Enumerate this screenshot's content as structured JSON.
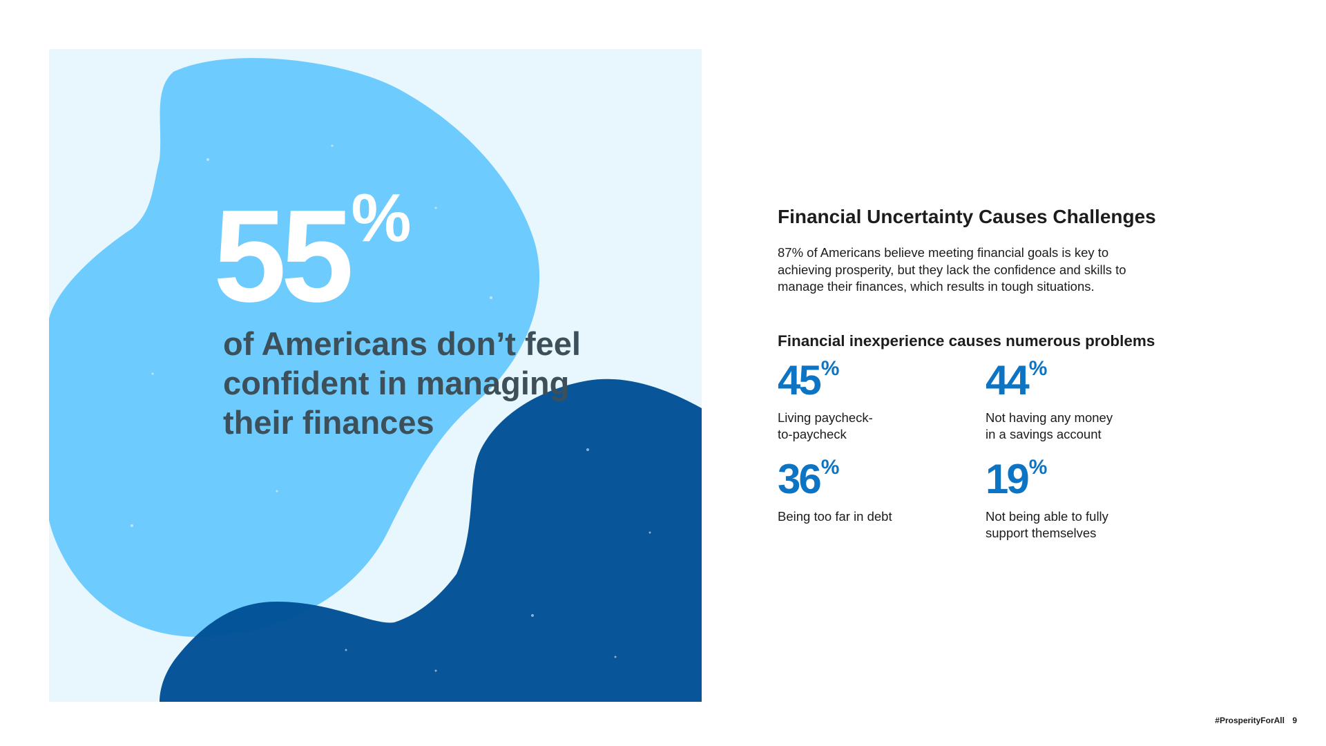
{
  "colors": {
    "panel_background": "#e8f7fd",
    "light_blob": "#6dcbfd",
    "dark_blob": "#004f96",
    "stat_blue": "#0d74c4",
    "hero_text": "#3d4f59"
  },
  "hero": {
    "value": "55",
    "unit": "%",
    "text": "of Americans don’t feel confident in managing their finances"
  },
  "section": {
    "title": "Financial Uncertainty Causes Challenges",
    "intro": "87% of Americans believe meeting financial goals is key to achieving prosperity, but they lack the confidence and skills to manage their finances, which results in tough situations."
  },
  "problems": {
    "title": "Financial inexperience causes numerous problems",
    "stats": [
      {
        "value": "45",
        "unit": "%",
        "label": "Living paycheck-\nto-paycheck"
      },
      {
        "value": "44",
        "unit": "%",
        "label": "Not having any money\nin a savings account"
      },
      {
        "value": "36",
        "unit": "%",
        "label": "Being too far in debt"
      },
      {
        "value": "19",
        "unit": "%",
        "label": "Not being able to fully\nsupport themselves"
      }
    ]
  },
  "footer": {
    "hashtag": "#ProsperityForAll",
    "page_number": "9"
  }
}
